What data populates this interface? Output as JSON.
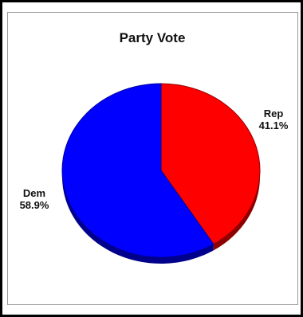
{
  "chart_data": {
    "type": "pie",
    "title": "Party Vote",
    "slices": [
      {
        "label": "Rep",
        "value": 41.1,
        "value_label": "41.1%",
        "color": "#ff0000"
      },
      {
        "label": "Dem",
        "value": 58.9,
        "value_label": "58.9%",
        "color": "#0000ff"
      }
    ],
    "start_angle_deg": 0,
    "direction": "clockwise",
    "style": "3d-tilted"
  }
}
